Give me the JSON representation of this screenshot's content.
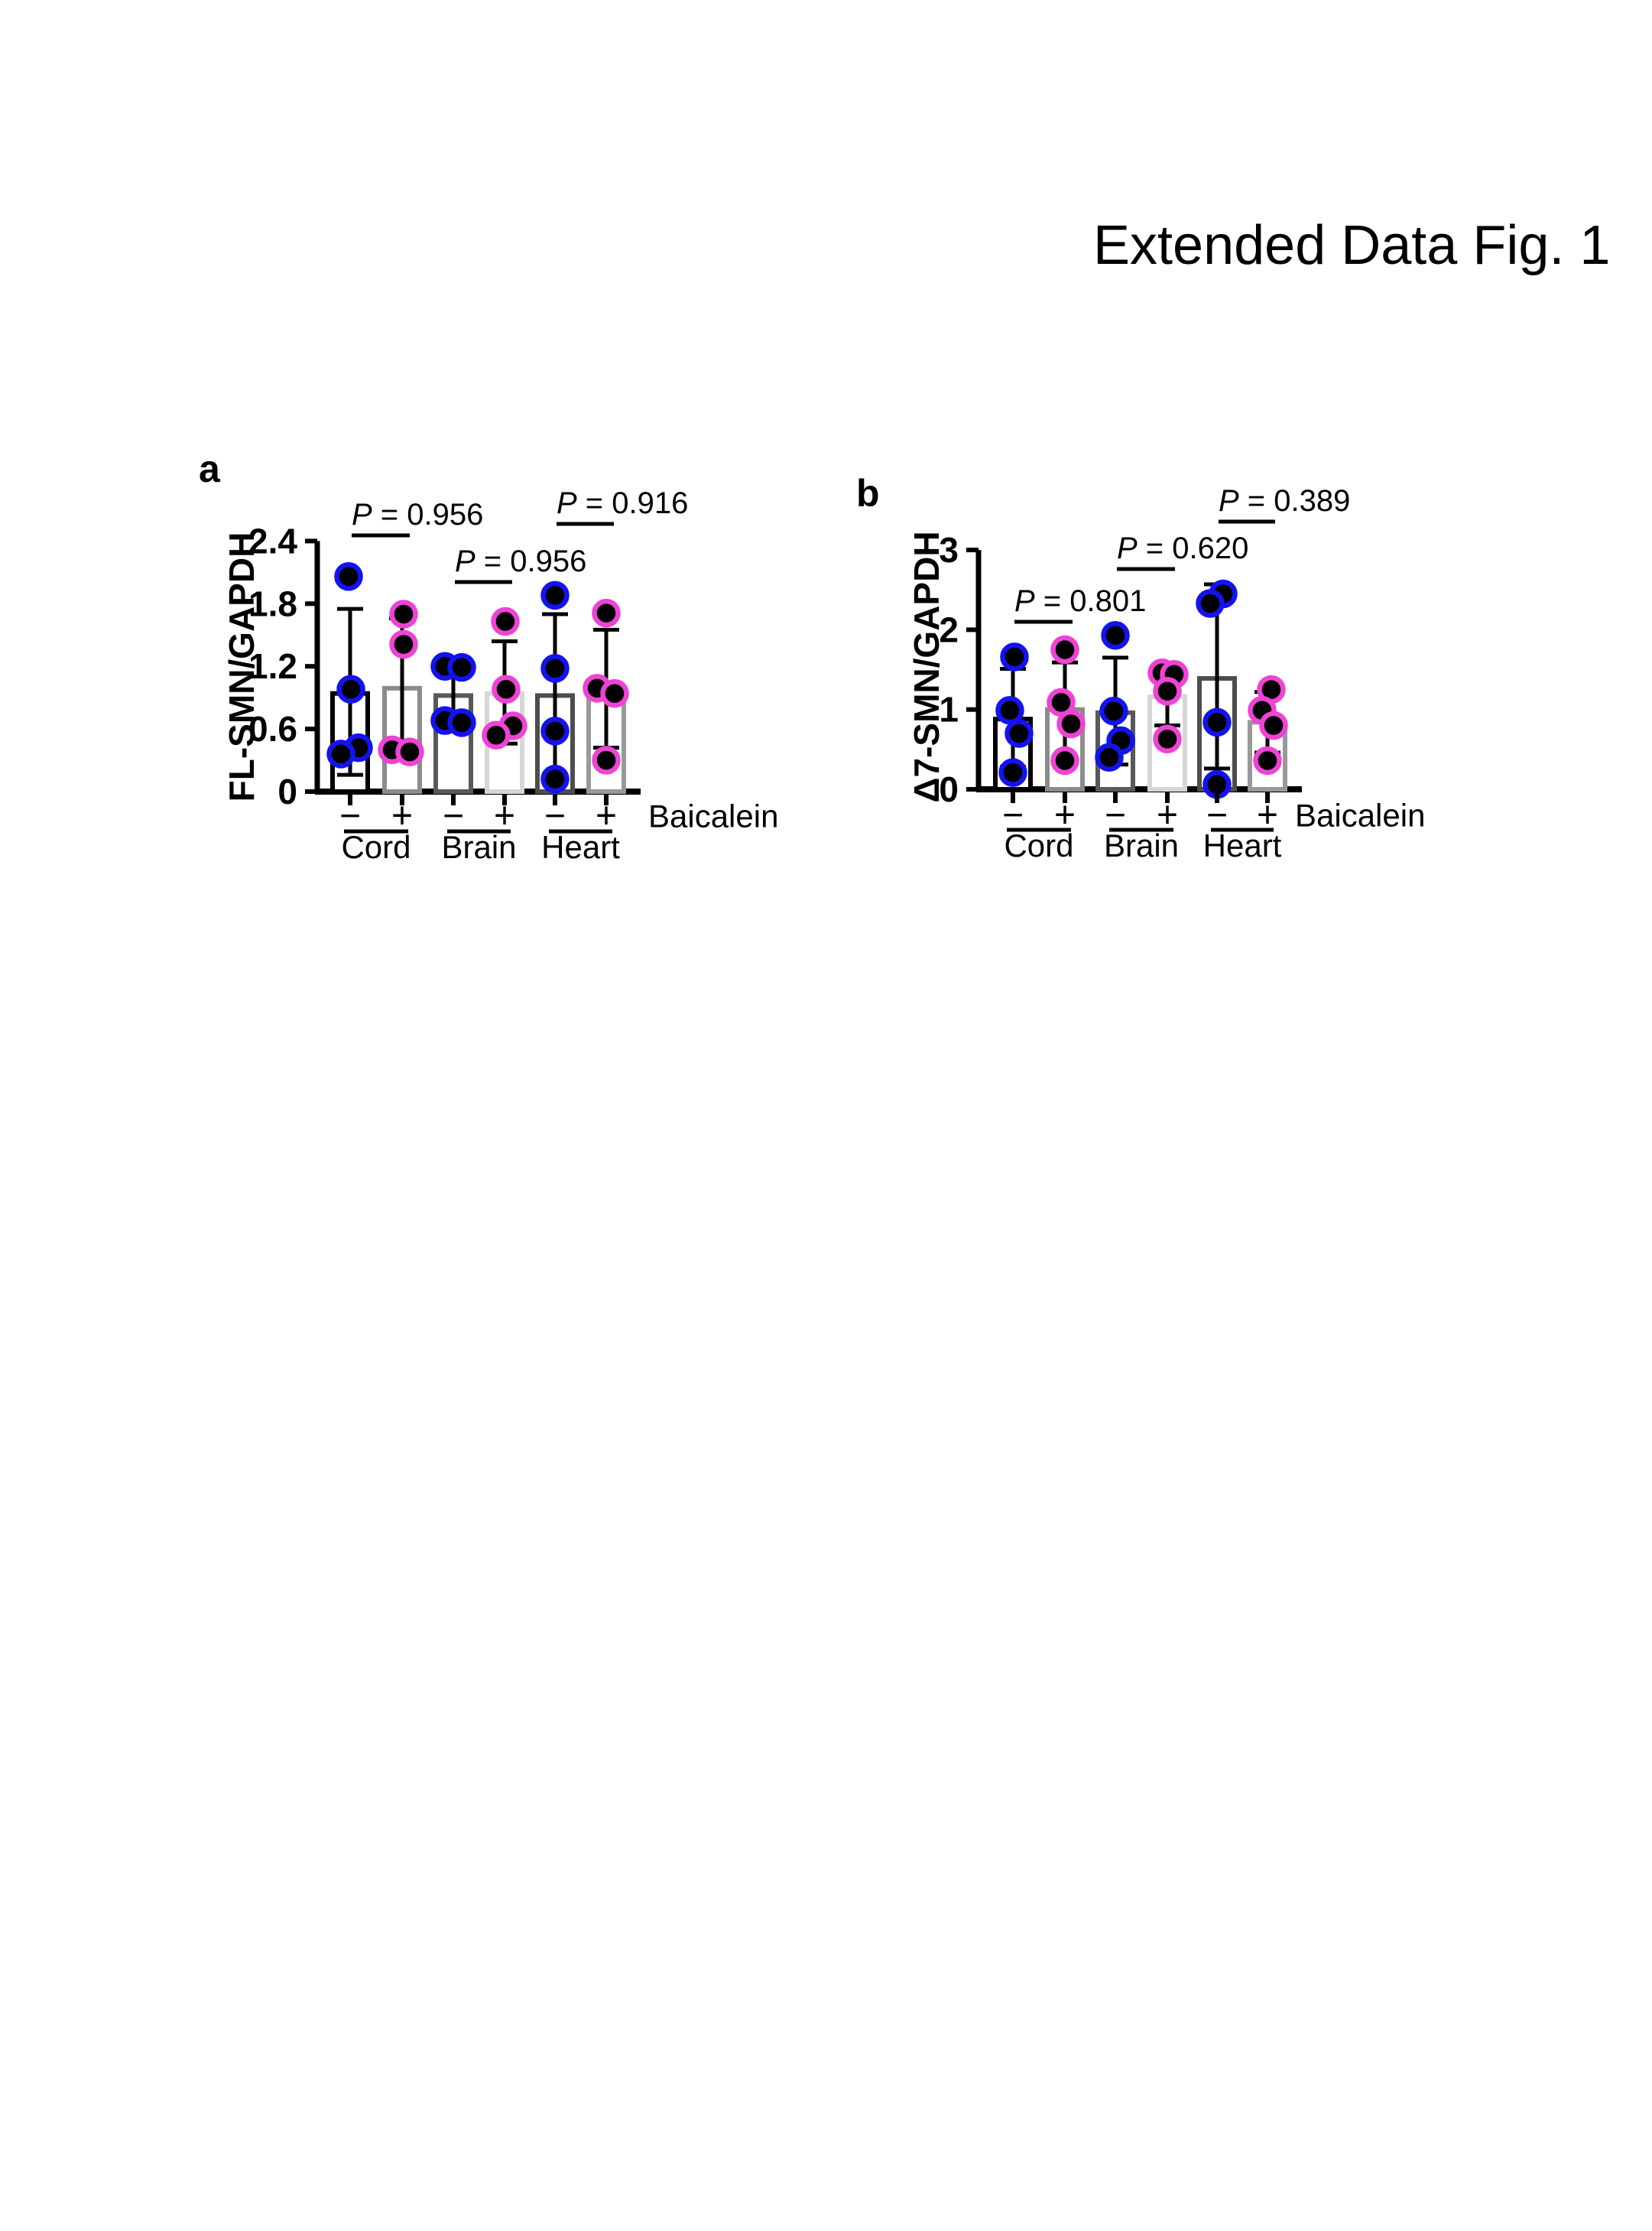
{
  "figure": {
    "title": "Extended Data Fig. 1"
  },
  "style": {
    "point_fill": "#000000",
    "minus_edge_color": "#1313f0",
    "plus_edge_color": "#ee43d4",
    "axis_color": "#000000"
  },
  "chart_data": [
    {
      "type": "bar",
      "panel_letter": "a",
      "title": "",
      "ylabel": "FL-SMN/GAPDH",
      "xlabel": "Baicalein",
      "ylim": [
        0,
        2.4
      ],
      "yticks": [
        0,
        0.6,
        1.2,
        1.8,
        2.4
      ],
      "ytick_labels": [
        "0",
        "0.6",
        "1.2",
        "1.8",
        "2.4"
      ],
      "grid": false,
      "groups": [
        "Cord",
        "Brain",
        "Heart"
      ],
      "conditions": [
        "−",
        "+"
      ],
      "p_values": [
        {
          "group": "Cord",
          "label": "P = 0.956"
        },
        {
          "group": "Brain",
          "label": "P = 0.956"
        },
        {
          "group": "Heart",
          "label": "P = 0.916"
        }
      ],
      "bars": [
        {
          "group": "Cord",
          "baicalein": "−",
          "mean": 0.94,
          "whisker": [
            0.16,
            1.75
          ],
          "outline": "#000000",
          "point_edge": "#1313f0",
          "points": [
            {
              "v": 2.06,
              "dx": -2
            },
            {
              "v": 0.98,
              "dx": 1
            },
            {
              "v": 0.42,
              "dx": 11
            },
            {
              "v": 0.36,
              "dx": -12
            }
          ]
        },
        {
          "group": "Cord",
          "baicalein": "+",
          "mean": 0.99,
          "whisker": [
            0.3,
            1.66
          ],
          "outline": "#8c8c8c",
          "point_edge": "#ee43d4",
          "points": [
            {
              "v": 1.7,
              "dx": 2
            },
            {
              "v": 1.41,
              "dx": 2
            },
            {
              "v": 0.4,
              "dx": -13
            },
            {
              "v": 0.38,
              "dx": 10
            }
          ]
        },
        {
          "group": "Brain",
          "baicalein": "−",
          "mean": 0.92,
          "whisker": [
            0.64,
            1.21
          ],
          "outline": "#595959",
          "point_edge": "#1313f0",
          "points": [
            {
              "v": 1.2,
              "dx": -11
            },
            {
              "v": 1.19,
              "dx": 11
            },
            {
              "v": 0.68,
              "dx": -11
            },
            {
              "v": 0.66,
              "dx": 11
            }
          ]
        },
        {
          "group": "Brain",
          "baicalein": "+",
          "mean": 0.94,
          "whisker": [
            0.46,
            1.44
          ],
          "outline": "#d6d6d6",
          "point_edge": "#ee43d4",
          "points": [
            {
              "v": 1.63,
              "dx": 1
            },
            {
              "v": 0.98,
              "dx": 2
            },
            {
              "v": 0.63,
              "dx": 11
            },
            {
              "v": 0.54,
              "dx": -11
            }
          ]
        },
        {
          "group": "Heart",
          "baicalein": "−",
          "mean": 0.92,
          "whisker": [
            0.16,
            1.7
          ],
          "outline": "#4d4d4d",
          "point_edge": "#1313f0",
          "points": [
            {
              "v": 1.88,
              "dx": 0
            },
            {
              "v": 1.18,
              "dx": 0
            },
            {
              "v": 0.58,
              "dx": 0
            },
            {
              "v": 0.12,
              "dx": 0
            }
          ]
        },
        {
          "group": "Heart",
          "baicalein": "+",
          "mean": 0.9,
          "whisker": [
            0.42,
            1.55
          ],
          "outline": "#999999",
          "point_edge": "#ee43d4",
          "points": [
            {
              "v": 1.71,
              "dx": 0
            },
            {
              "v": 0.99,
              "dx": -12
            },
            {
              "v": 0.94,
              "dx": 11
            },
            {
              "v": 0.3,
              "dx": 0
            }
          ]
        }
      ]
    },
    {
      "type": "bar",
      "panel_letter": "b",
      "title": "",
      "ylabel": "Δ7-SMN/GAPDH",
      "xlabel": "Baicalein",
      "ylim": [
        0,
        3
      ],
      "yticks": [
        0,
        1,
        2,
        3
      ],
      "ytick_labels": [
        "0",
        "1",
        "2",
        "3"
      ],
      "grid": false,
      "groups": [
        "Cord",
        "Brain",
        "Heart"
      ],
      "conditions": [
        "−",
        "+"
      ],
      "p_values": [
        {
          "group": "Cord",
          "label": "P = 0.801"
        },
        {
          "group": "Brain",
          "label": "P = 0.620"
        },
        {
          "group": "Heart",
          "label": "P = 0.389"
        }
      ],
      "bars": [
        {
          "group": "Cord",
          "baicalein": "−",
          "mean": 0.88,
          "whisker": [
            0.28,
            1.51
          ],
          "outline": "#000000",
          "point_edge": "#1313f0",
          "points": [
            {
              "v": 1.66,
              "dx": 2
            },
            {
              "v": 0.99,
              "dx": -4
            },
            {
              "v": 0.7,
              "dx": 8
            },
            {
              "v": 0.21,
              "dx": 0
            }
          ]
        },
        {
          "group": "Cord",
          "baicalein": "+",
          "mean": 1.0,
          "whisker": [
            0.41,
            1.59
          ],
          "outline": "#8c8c8c",
          "point_edge": "#ee43d4",
          "points": [
            {
              "v": 1.75,
              "dx": 0
            },
            {
              "v": 1.09,
              "dx": -5
            },
            {
              "v": 0.82,
              "dx": 8
            },
            {
              "v": 0.36,
              "dx": 0
            }
          ]
        },
        {
          "group": "Brain",
          "baicalein": "−",
          "mean": 0.96,
          "whisker": [
            0.31,
            1.65
          ],
          "outline": "#595959",
          "point_edge": "#1313f0",
          "points": [
            {
              "v": 1.93,
              "dx": 0
            },
            {
              "v": 0.98,
              "dx": -2
            },
            {
              "v": 0.61,
              "dx": 7
            },
            {
              "v": 0.4,
              "dx": -8
            }
          ]
        },
        {
          "group": "Brain",
          "baicalein": "+",
          "mean": 1.16,
          "whisker": [
            0.8,
            1.56
          ],
          "outline": "#d6d6d6",
          "point_edge": "#ee43d4",
          "points": [
            {
              "v": 1.46,
              "dx": -7
            },
            {
              "v": 1.44,
              "dx": 9
            },
            {
              "v": 1.23,
              "dx": 0
            },
            {
              "v": 0.63,
              "dx": 0
            }
          ]
        },
        {
          "group": "Heart",
          "baicalein": "−",
          "mean": 1.39,
          "whisker": [
            0.26,
            2.57
          ],
          "outline": "#4d4d4d",
          "point_edge": "#1313f0",
          "points": [
            {
              "v": 2.45,
              "dx": 8
            },
            {
              "v": 2.33,
              "dx": -9
            },
            {
              "v": 0.84,
              "dx": 0
            },
            {
              "v": 0.06,
              "dx": 0
            }
          ]
        },
        {
          "group": "Heart",
          "baicalein": "+",
          "mean": 0.84,
          "whisker": [
            0.46,
            1.22
          ],
          "outline": "#999999",
          "point_edge": "#ee43d4",
          "points": [
            {
              "v": 1.25,
              "dx": 5
            },
            {
              "v": 0.99,
              "dx": -7
            },
            {
              "v": 0.8,
              "dx": 8
            },
            {
              "v": 0.36,
              "dx": 0
            }
          ]
        }
      ]
    }
  ]
}
